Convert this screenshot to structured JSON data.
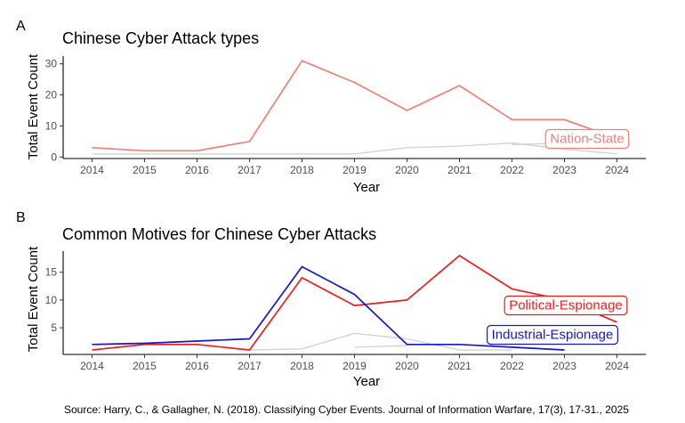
{
  "source": "Source: Harry, C., & Gallagher, N. (2018). Classifying Cyber Events. Journal of Information Warfare, 17(3), 17-31., 2025",
  "chart_data": [
    {
      "panel": "A",
      "type": "line",
      "title": "Chinese Cyber Attack types",
      "xlabel": "Year",
      "ylabel": "Total Event Count",
      "x": [
        2014,
        2015,
        2016,
        2017,
        2018,
        2019,
        2020,
        2021,
        2022,
        2023,
        2024
      ],
      "x_ticks": [
        "2014",
        "2015",
        "2016",
        "2017",
        "2018",
        "2019",
        "2020",
        "2021",
        "2022",
        "2023",
        "2024"
      ],
      "y_ticks": [
        "0",
        "10",
        "20",
        "30"
      ],
      "ylim": [
        -0.5,
        32.5
      ],
      "grid": false,
      "series": [
        {
          "name": "Nation-State",
          "color": "#f07f78",
          "highlighted": true,
          "values": [
            3,
            2,
            2,
            5,
            31,
            24,
            15,
            23,
            12,
            12,
            6
          ]
        },
        {
          "name": "",
          "color": "#d3d3d3",
          "highlighted": false,
          "values": [
            1,
            1,
            1,
            1,
            1,
            1,
            3,
            3.5,
            4.5,
            2.5,
            1
          ]
        },
        {
          "name": "",
          "color": "#d3d3d3",
          "highlighted": false,
          "values": [
            null,
            null,
            null,
            null,
            null,
            null,
            null,
            null,
            4,
            4.5,
            3.5
          ]
        }
      ]
    },
    {
      "panel": "B",
      "type": "line",
      "title": "Common Motives for Chinese Cyber Attacks",
      "xlabel": "Year",
      "ylabel": "Total Event Count",
      "x": [
        2014,
        2015,
        2016,
        2017,
        2018,
        2019,
        2020,
        2021,
        2022,
        2023,
        2024
      ],
      "x_ticks": [
        "2014",
        "2015",
        "2016",
        "2017",
        "2018",
        "2019",
        "2020",
        "2021",
        "2022",
        "2023",
        "2024"
      ],
      "y_ticks": [
        "5",
        "10",
        "15"
      ],
      "ylim": [
        0.2,
        18.8
      ],
      "grid": false,
      "series": [
        {
          "name": "Political-Espionage",
          "color": "#ee1c1c",
          "highlighted": true,
          "values": [
            1,
            2,
            2,
            1,
            14,
            9,
            10,
            18,
            12,
            10,
            6
          ]
        },
        {
          "name": "Industrial-Espionage",
          "color": "#1515cc",
          "highlighted": true,
          "values": [
            2,
            2.2,
            2.6,
            3,
            16,
            11,
            2,
            2,
            1.5,
            1,
            null
          ]
        },
        {
          "name": "",
          "color": "#d3d3d3",
          "highlighted": false,
          "values": [
            null,
            null,
            null,
            1,
            1.2,
            4,
            3,
            1,
            1,
            null,
            null
          ]
        },
        {
          "name": "",
          "color": "#d3d3d3",
          "highlighted": false,
          "values": [
            null,
            null,
            null,
            null,
            null,
            1.5,
            1.8,
            null,
            null,
            null,
            null
          ]
        }
      ]
    }
  ]
}
